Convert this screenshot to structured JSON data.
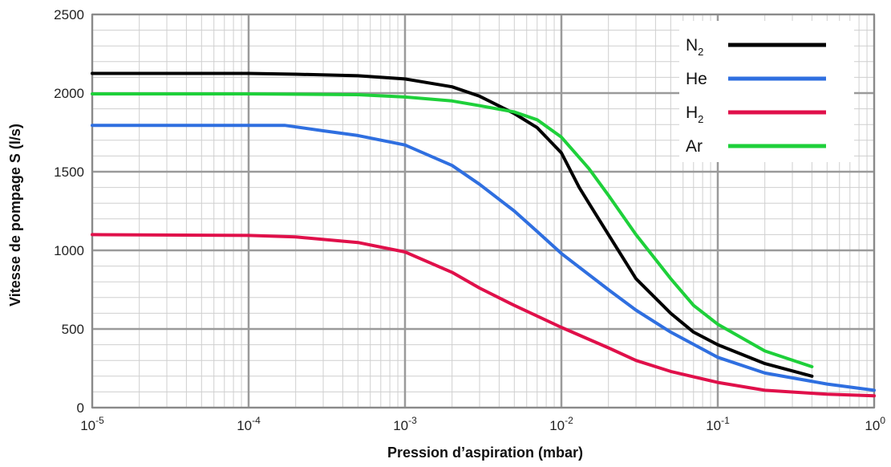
{
  "chart_data": {
    "type": "line",
    "title": "",
    "xlabel": "Pression d’aspiration (mbar)",
    "ylabel": "Vitesse de pompage S (l/s)",
    "x_scale": "log",
    "xlim": [
      1e-05,
      1
    ],
    "ylim": [
      0,
      2500
    ],
    "x_ticks": [
      {
        "value": 1e-05,
        "base": "10",
        "exp": "-5"
      },
      {
        "value": 0.0001,
        "base": "10",
        "exp": "-4"
      },
      {
        "value": 0.001,
        "base": "10",
        "exp": "-3"
      },
      {
        "value": 0.01,
        "base": "10",
        "exp": "-2"
      },
      {
        "value": 0.1,
        "base": "10",
        "exp": "-1"
      },
      {
        "value": 1,
        "base": "10",
        "exp": "0"
      }
    ],
    "y_ticks": [
      0,
      500,
      1000,
      1500,
      2000,
      2500
    ],
    "grid": true,
    "legend_position": "top-right",
    "series": [
      {
        "name": "N",
        "name_sub": "2",
        "color": "#000000",
        "x": [
          1e-05,
          0.0001,
          0.0002,
          0.0005,
          0.001,
          0.002,
          0.003,
          0.005,
          0.007,
          0.01,
          0.013,
          0.015,
          0.02,
          0.03,
          0.05,
          0.07,
          0.1,
          0.2,
          0.4
        ],
        "y": [
          2125,
          2125,
          2120,
          2110,
          2090,
          2040,
          1980,
          1870,
          1780,
          1620,
          1400,
          1300,
          1100,
          820,
          600,
          480,
          400,
          280,
          200
        ]
      },
      {
        "name": "He",
        "name_sub": "",
        "color": "#2f6fe0",
        "x": [
          1e-05,
          0.0001,
          0.00017,
          0.0003,
          0.0005,
          0.001,
          0.002,
          0.003,
          0.005,
          0.007,
          0.01,
          0.02,
          0.03,
          0.05,
          0.1,
          0.2,
          0.5,
          1
        ],
        "y": [
          1795,
          1795,
          1795,
          1760,
          1730,
          1670,
          1540,
          1420,
          1250,
          1120,
          980,
          750,
          620,
          480,
          320,
          220,
          150,
          110
        ]
      },
      {
        "name": "H",
        "name_sub": "2",
        "color": "#e0104a",
        "x": [
          1e-05,
          0.0001,
          0.0002,
          0.0005,
          0.001,
          0.002,
          0.003,
          0.005,
          0.01,
          0.02,
          0.03,
          0.05,
          0.1,
          0.2,
          0.5,
          1
        ],
        "y": [
          1100,
          1095,
          1085,
          1050,
          990,
          860,
          760,
          650,
          510,
          380,
          300,
          230,
          160,
          110,
          85,
          75
        ]
      },
      {
        "name": "Ar",
        "name_sub": "",
        "color": "#1ed03a",
        "x": [
          1e-05,
          0.0001,
          0.0005,
          0.001,
          0.002,
          0.003,
          0.005,
          0.007,
          0.01,
          0.015,
          0.02,
          0.03,
          0.05,
          0.07,
          0.1,
          0.2,
          0.4
        ],
        "y": [
          1995,
          1995,
          1990,
          1975,
          1950,
          1920,
          1880,
          1830,
          1720,
          1520,
          1350,
          1100,
          820,
          650,
          530,
          360,
          260
        ]
      }
    ]
  }
}
